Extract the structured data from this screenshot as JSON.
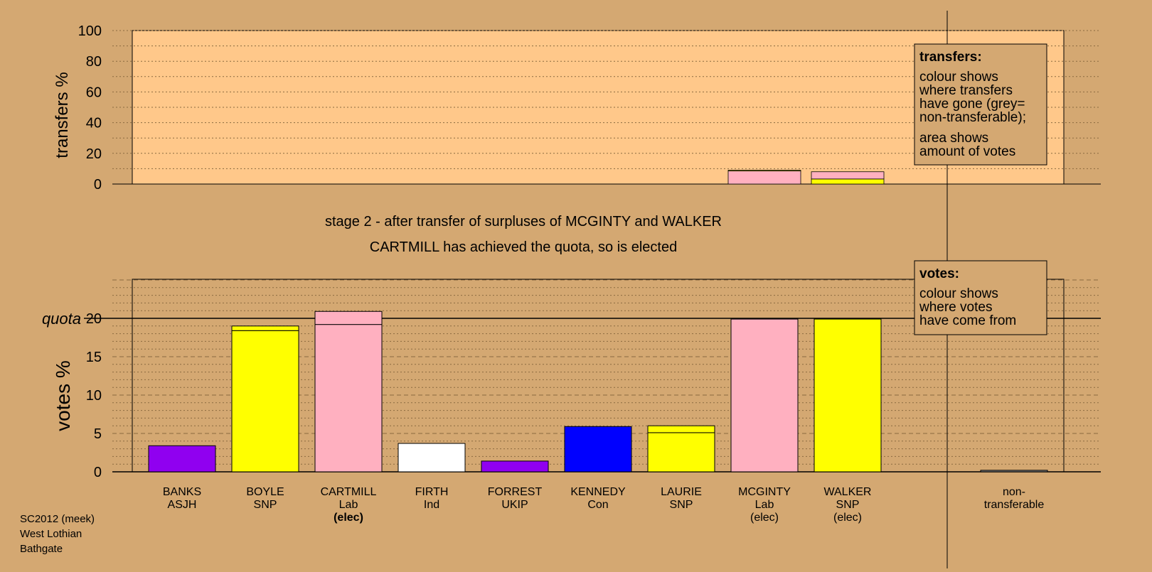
{
  "colors": {
    "background": "#d4a872",
    "plot_background": "#ffc88a",
    "legend_background": "#d4a872",
    "Lab": "#ffb0c0",
    "SNP": "#ffff00",
    "ASJH": "#9000f0",
    "Ind": "#ffffff",
    "UKIP": "#9000f0",
    "Con": "#0000ff",
    "non_transferable": "#808080"
  },
  "stage_title": "stage 2 - after transfer of surpluses of MCGINTY and WALKER",
  "stage_subtitle": "CARTMILL has achieved the quota, so is elected",
  "legend_transfers": {
    "heading": "transfers:",
    "line1": "colour shows",
    "line2": "where transfers",
    "line3": "have gone (grey=",
    "line4": "non-transferable);",
    "line5": "area shows",
    "line6": "amount of votes"
  },
  "legend_votes": {
    "heading": "votes:",
    "line1": "colour shows",
    "line2": "where votes",
    "line3": "have come from"
  },
  "footer": {
    "line1": "SC2012 (meek)",
    "line2": "West Lothian",
    "line3": "Bathgate"
  },
  "chart_data": [
    {
      "type": "bar",
      "chart": "transfers",
      "ylabel": "transfers %",
      "ylim": [
        0,
        100
      ],
      "yticks": [
        0,
        20,
        40,
        60,
        80,
        100
      ],
      "grid": true,
      "bars": [
        {
          "candidate": "MCGINTY",
          "segments": [
            {
              "party": "Lab",
              "value": 8.5
            },
            {
              "party": "SNP",
              "value": 0.5
            }
          ]
        },
        {
          "candidate": "WALKER",
          "segments": [
            {
              "party": "SNP",
              "value": 3.3
            },
            {
              "party": "Lab",
              "value": 4.7
            }
          ]
        }
      ]
    },
    {
      "type": "bar",
      "chart": "votes",
      "ylabel": "votes %",
      "ylim": [
        0,
        25
      ],
      "yticks": [
        0,
        5,
        10,
        15,
        20
      ],
      "quota_label": "quota",
      "quota": 20,
      "grid": true,
      "categories": [
        "BANKS",
        "BOYLE",
        "CARTMILL",
        "FIRTH",
        "FORREST",
        "KENNEDY",
        "LAURIE",
        "MCGINTY",
        "WALKER",
        "non-"
      ],
      "bars": [
        {
          "name": "BANKS",
          "party": "ASJH",
          "status": "",
          "segments": [
            {
              "party": "ASJH",
              "value": 3.4
            }
          ]
        },
        {
          "name": "BOYLE",
          "party": "SNP",
          "status": "",
          "segments": [
            {
              "party": "SNP",
              "value": 18.4
            },
            {
              "party": "SNP",
              "value": 0.6
            }
          ]
        },
        {
          "name": "CARTMILL",
          "party": "Lab",
          "status": "(elec)",
          "segments": [
            {
              "party": "Lab",
              "value": 19.2
            },
            {
              "party": "Lab",
              "value": 1.7
            }
          ]
        },
        {
          "name": "FIRTH",
          "party": "Ind",
          "status": "",
          "segments": [
            {
              "party": "Ind",
              "value": 3.7
            }
          ]
        },
        {
          "name": "FORREST",
          "party": "UKIP",
          "status": "",
          "segments": [
            {
              "party": "UKIP",
              "value": 1.4
            }
          ]
        },
        {
          "name": "KENNEDY",
          "party": "Con",
          "status": "",
          "segments": [
            {
              "party": "Con",
              "value": 5.9
            }
          ]
        },
        {
          "name": "LAURIE",
          "party": "SNP",
          "status": "",
          "segments": [
            {
              "party": "SNP",
              "value": 5.1
            },
            {
              "party": "SNP",
              "value": 0.9
            }
          ]
        },
        {
          "name": "MCGINTY",
          "party": "Lab",
          "status": "(elec)",
          "segments": [
            {
              "party": "Lab",
              "value": 19.9
            }
          ]
        },
        {
          "name": "WALKER",
          "party": "SNP",
          "status": "(elec)",
          "segments": [
            {
              "party": "SNP",
              "value": 19.9
            }
          ]
        },
        {
          "name": "non-",
          "party": "transferable",
          "status": "",
          "segments": [
            {
              "party": "non_transferable",
              "value": 0.2
            }
          ]
        }
      ]
    }
  ]
}
